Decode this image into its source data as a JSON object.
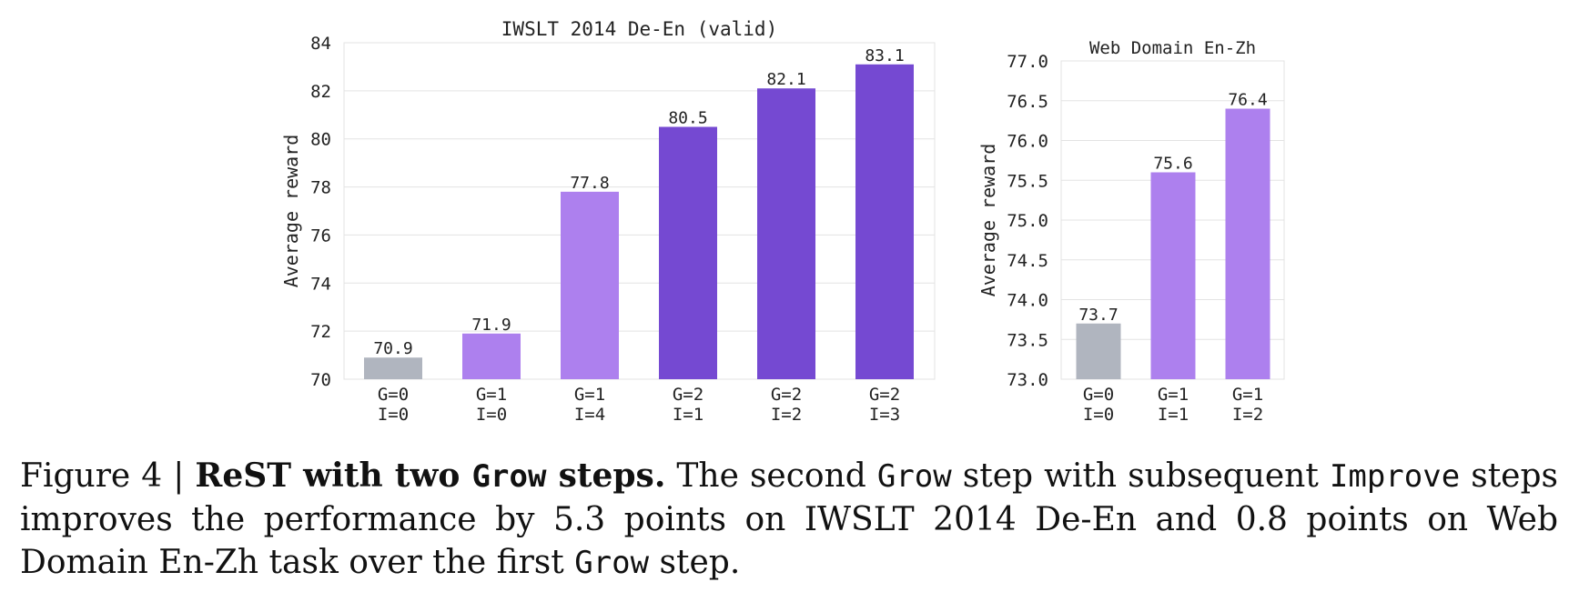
{
  "chart_data": [
    {
      "type": "bar",
      "title": "IWSLT 2014 De-En (valid)",
      "xlabel": "",
      "ylabel": "Average reward",
      "ylim": [
        70,
        84
      ],
      "yticks": [
        "70",
        "72",
        "74",
        "76",
        "78",
        "80",
        "82",
        "84"
      ],
      "grid": true,
      "categories": [
        [
          "G=0",
          "I=0"
        ],
        [
          "G=1",
          "I=0"
        ],
        [
          "G=1",
          "I=4"
        ],
        [
          "G=2",
          "I=1"
        ],
        [
          "G=2",
          "I=2"
        ],
        [
          "G=2",
          "I=3"
        ]
      ],
      "values": [
        70.9,
        71.9,
        77.8,
        80.5,
        82.1,
        83.1
      ],
      "value_labels": [
        "70.9",
        "71.9",
        "77.8",
        "80.5",
        "82.1",
        "83.1"
      ],
      "colors": [
        "#b0b5bf",
        "#ad80ee",
        "#ad80ee",
        "#7549d2",
        "#7549d2",
        "#7549d2"
      ]
    },
    {
      "type": "bar",
      "title": "Web Domain En-Zh",
      "xlabel": "",
      "ylabel": "Average reward",
      "ylim": [
        73.0,
        77.0
      ],
      "yticks": [
        "73.0",
        "73.5",
        "74.0",
        "74.5",
        "75.0",
        "75.5",
        "76.0",
        "76.5",
        "77.0"
      ],
      "grid": true,
      "categories": [
        [
          "G=0",
          "I=0"
        ],
        [
          "G=1",
          "I=1"
        ],
        [
          "G=1",
          "I=2"
        ]
      ],
      "values": [
        73.7,
        75.6,
        76.4
      ],
      "value_labels": [
        "73.7",
        "75.6",
        "76.4"
      ],
      "colors": [
        "#b0b5bf",
        "#ad80ee",
        "#ad80ee"
      ]
    }
  ],
  "caption": {
    "figure_label": "Figure 4 | ",
    "bold_parts": [
      "ReST with two ",
      "Grow",
      " steps."
    ],
    "text_parts": [
      "  The second ",
      "Grow",
      " step with subsequent ",
      "Improve",
      " steps improves the performance by 5.3 points on IWSLT 2014 De-En and 0.8 points on Web Domain En-Zh task over the first ",
      "Grow",
      " step."
    ]
  }
}
